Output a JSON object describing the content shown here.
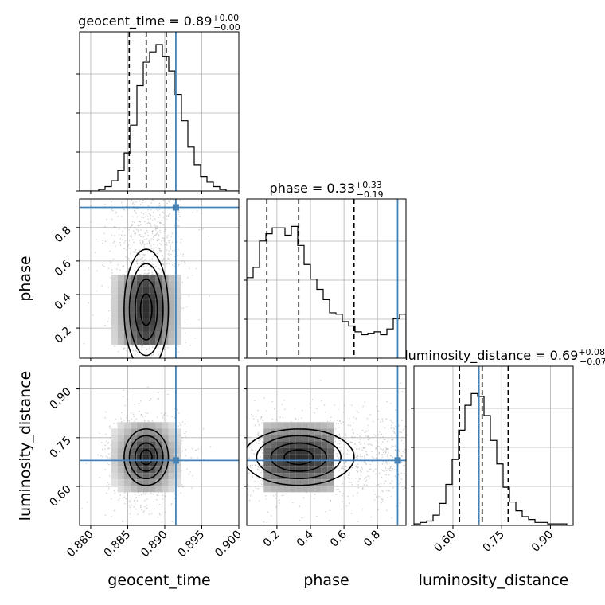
{
  "chart_data": {
    "type": "corner",
    "truth_color": "#4682b4",
    "parameters": [
      {
        "name": "geocent_time",
        "axis_label": "geocent_time",
        "title_main": "geocent_time = 0.89",
        "title_plus": "+0.00",
        "title_minus": "−0.00",
        "median": 0.8875,
        "q_low": 0.8852,
        "q_high": 0.8902,
        "truth": 0.8915,
        "range": [
          0.8785,
          0.9
        ],
        "ticks": [
          0.88,
          0.885,
          0.89,
          0.895,
          0.9
        ],
        "tick_labels": [
          "0.880",
          "0.885",
          "0.890",
          "0.895",
          "0.900"
        ],
        "hist": [
          0,
          0,
          0,
          0.01,
          0.03,
          0.07,
          0.14,
          0.26,
          0.45,
          0.72,
          0.88,
          0.95,
          1.0,
          0.92,
          0.82,
          0.66,
          0.48,
          0.3,
          0.18,
          0.1,
          0.06,
          0.03,
          0.01,
          0,
          0
        ]
      },
      {
        "name": "phase",
        "axis_label": "phase",
        "title_main": "phase = 0.33",
        "title_plus": "+0.33",
        "title_minus": "−0.19",
        "median": 0.33,
        "q_low": 0.14,
        "q_high": 0.66,
        "truth": 0.92,
        "range": [
          0.02,
          0.97
        ],
        "ticks": [
          0.2,
          0.4,
          0.6,
          0.8
        ],
        "tick_labels": [
          "0.2",
          "0.4",
          "0.6",
          "0.8"
        ],
        "hist": [
          0.55,
          0.62,
          0.8,
          0.85,
          0.89,
          0.89,
          0.84,
          0.9,
          0.77,
          0.64,
          0.54,
          0.47,
          0.4,
          0.31,
          0.3,
          0.25,
          0.22,
          0.18,
          0.16,
          0.17,
          0.18,
          0.16,
          0.2,
          0.27,
          0.3
        ]
      },
      {
        "name": "luminosity_distance",
        "axis_label": "luminosity_distance",
        "title_main": "luminosity_distance = 0.69",
        "title_plus": "+0.08",
        "title_minus": "−0.07",
        "median": 0.69,
        "q_low": 0.62,
        "q_high": 0.77,
        "truth": 0.68,
        "range": [
          0.48,
          0.97
        ],
        "ticks": [
          0.6,
          0.75,
          0.9
        ],
        "tick_labels": [
          "0.60",
          "0.75",
          "0.90"
        ],
        "hist": [
          0.01,
          0.02,
          0.03,
          0.07,
          0.15,
          0.28,
          0.45,
          0.65,
          0.82,
          0.9,
          0.88,
          0.75,
          0.58,
          0.42,
          0.26,
          0.16,
          0.1,
          0.06,
          0.04,
          0.02,
          0.02,
          0.01,
          0.01,
          0.01,
          0
        ]
      }
    ],
    "pairs": [
      {
        "x": "geocent_time",
        "y": "phase",
        "x_center": 0.8875,
        "y_center": 0.31,
        "x_sd": 0.0018,
        "y_sd": 0.25
      },
      {
        "x": "geocent_time",
        "y": "luminosity_distance",
        "x_center": 0.8875,
        "y_center": 0.69,
        "x_sd": 0.0018,
        "y_sd": 0.05
      },
      {
        "x": "phase",
        "y": "luminosity_distance",
        "x_center": 0.33,
        "y_center": 0.69,
        "x_sd": 0.25,
        "y_sd": 0.05
      }
    ]
  }
}
